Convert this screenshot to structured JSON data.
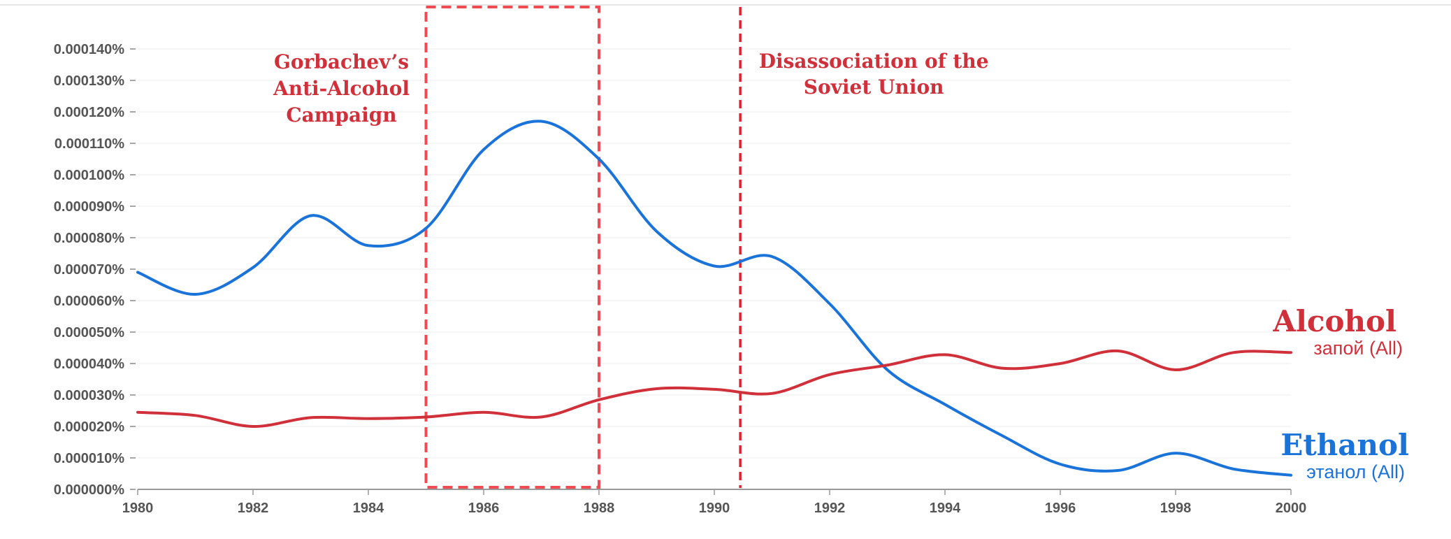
{
  "chart_data": {
    "type": "line",
    "title": "",
    "xlabel": "",
    "ylabel": "",
    "xlim": [
      1980,
      2000
    ],
    "ylim": [
      0,
      0.00014
    ],
    "x_ticks": [
      "1980",
      "1982",
      "1984",
      "1986",
      "1988",
      "1990",
      "1992",
      "1994",
      "1996",
      "1998",
      "2000"
    ],
    "y_ticks": [
      "0.000000%",
      "0.000010%",
      "0.000020%",
      "0.000030%",
      "0.000040%",
      "0.000050%",
      "0.000060%",
      "0.000070%",
      "0.000080%",
      "0.000090%",
      "0.000100%",
      "0.000110%",
      "0.000120%",
      "0.000130%",
      "0.000140%"
    ],
    "grid": true,
    "series": [
      {
        "name": "этанол (All)",
        "display_name": "Ethanol",
        "color": "#1a73d9",
        "x": [
          1980,
          1981,
          1982,
          1983,
          1984,
          1985,
          1986,
          1987,
          1988,
          1989,
          1990,
          1991,
          1992,
          1993,
          1994,
          1995,
          1996,
          1997,
          1998,
          1999,
          2000
        ],
        "y": [
          6.9e-05,
          6.2e-05,
          7.05e-05,
          8.7e-05,
          7.75e-05,
          8.3e-05,
          0.000108,
          0.000117,
          0.000105,
          8.2e-05,
          7.1e-05,
          7.4e-05,
          5.9e-05,
          3.8e-05,
          2.7e-05,
          1.7e-05,
          8e-06,
          6e-06,
          1.15e-05,
          6.5e-06,
          4.5e-06
        ]
      },
      {
        "name": "запой (All)",
        "display_name": "Alcohol",
        "color": "#d0303a",
        "x": [
          1980,
          1981,
          1982,
          1983,
          1984,
          1985,
          1986,
          1987,
          1988,
          1989,
          1990,
          1991,
          1992,
          1993,
          1994,
          1995,
          1996,
          1997,
          1998,
          1999,
          2000
        ],
        "y": [
          2.45e-05,
          2.35e-05,
          2e-05,
          2.28e-05,
          2.25e-05,
          2.3e-05,
          2.45e-05,
          2.3e-05,
          2.85e-05,
          3.2e-05,
          3.18e-05,
          3.05e-05,
          3.65e-05,
          3.95e-05,
          4.28e-05,
          3.85e-05,
          4e-05,
          4.4e-05,
          3.8e-05,
          4.35e-05,
          4.35e-05
        ]
      }
    ],
    "annotations": [
      {
        "text_lines": [
          "Gorbachev’s",
          "Anti-Alcohol",
          "Campaign"
        ],
        "type": "box",
        "x_start": 1985.0,
        "x_end": 1988.0,
        "color": "#ef4b52"
      },
      {
        "text_lines": [
          "Disassociation of the",
          "Soviet Union"
        ],
        "type": "vline",
        "x": 1990.45,
        "color": "#e0202a"
      }
    ]
  }
}
